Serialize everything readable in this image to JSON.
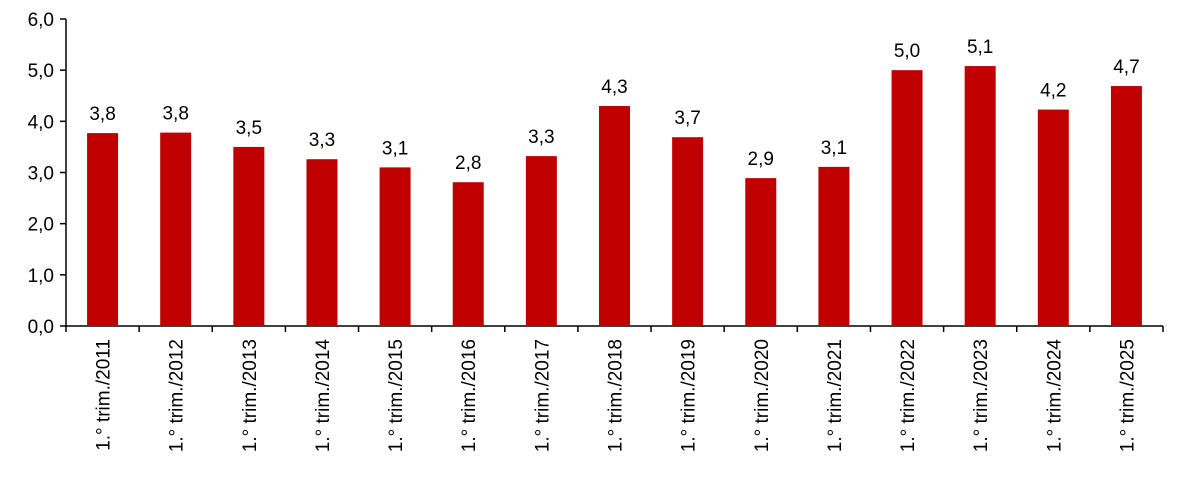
{
  "chart_data": {
    "type": "bar",
    "title": "",
    "xlabel": "",
    "ylabel": "",
    "categories": [
      "1.° trim./2011",
      "1.° trim./2012",
      "1.° trim./2013",
      "1.° trim./2014",
      "1.° trim./2015",
      "1.° trim./2016",
      "1.° trim./2017",
      "1.° trim./2018",
      "1.° trim./2019",
      "1.° trim./2020",
      "1.° trim./2021",
      "1.° trim./2022",
      "1.° trim./2023",
      "1.° trim./2024",
      "1.° trim./2025"
    ],
    "values": [
      3.77,
      3.78,
      3.5,
      3.26,
      3.1,
      2.81,
      3.32,
      4.3,
      3.69,
      2.89,
      3.11,
      5.0,
      5.08,
      4.23,
      4.69
    ],
    "data_labels": [
      "3,8",
      "3,8",
      "3,5",
      "3,3",
      "3,1",
      "2,8",
      "3,3",
      "4,3",
      "3,7",
      "2,9",
      "3,1",
      "5,0",
      "5,1",
      "4,2",
      "4,7"
    ],
    "ylim": [
      0,
      6
    ],
    "y_ticks": [
      "0,0",
      "1,0",
      "2,0",
      "3,0",
      "4,0",
      "5,0",
      "6,0"
    ],
    "grid": false,
    "legend": "none",
    "bar_color": "#c00000"
  }
}
